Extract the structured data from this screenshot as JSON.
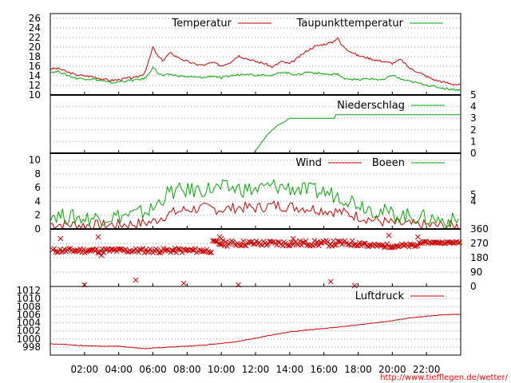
{
  "footer_url": "http://www.tiefflegen.de/wetter/",
  "colors": {
    "red": "#cc0000",
    "green": "#00aa00",
    "grid": "#999999"
  },
  "x_tick_labels": [
    "02:00",
    "04:00",
    "06:00",
    "08:00",
    "10:00",
    "12:00",
    "14:00",
    "16:00",
    "18:00",
    "20:00",
    "22:00"
  ],
  "chart_data": [
    {
      "type": "line",
      "x_unit": "hours",
      "xlim": [
        0,
        24
      ],
      "ylim": [
        10,
        27
      ],
      "y_ticks": [
        10,
        12,
        14,
        16,
        18,
        20,
        22,
        24,
        26
      ],
      "y_ticks_side": "left",
      "legend_placement": "top-right",
      "series": [
        {
          "name": "Temperatur",
          "color": "#cc0000",
          "x": [
            0,
            0.5,
            1,
            1.5,
            2,
            2.5,
            3,
            3.5,
            4,
            4.5,
            5,
            5.5,
            5.8,
            6.0,
            6.3,
            6.6,
            7,
            7.5,
            8,
            8.5,
            9,
            9.5,
            10,
            10.5,
            11,
            11.5,
            12,
            12.5,
            13,
            13.5,
            14,
            14.5,
            15,
            15.5,
            16,
            16.5,
            16.8,
            17,
            17.5,
            18,
            18.5,
            19,
            19.5,
            20,
            20.5,
            21,
            21.5,
            22,
            22.5,
            23,
            23.5,
            24
          ],
          "y": [
            15.5,
            15.5,
            14.8,
            14.2,
            14,
            13.8,
            13.4,
            13.0,
            13.2,
            13.5,
            13.6,
            14.5,
            17.5,
            20,
            18,
            17.2,
            18.8,
            17.8,
            17.0,
            16.4,
            16.2,
            16.8,
            16.1,
            16.8,
            18.2,
            17.6,
            17.0,
            16.6,
            15.8,
            17.0,
            16.5,
            17.8,
            19.2,
            20.2,
            20.6,
            21.0,
            22.0,
            20.5,
            19.2,
            18.2,
            17.8,
            17.3,
            17.0,
            16.6,
            17.4,
            15.6,
            14.8,
            13.9,
            13.1,
            12.7,
            12.3,
            12.1
          ]
        },
        {
          "name": "Taupunkttemperatur",
          "color": "#00aa00",
          "x": [
            0,
            0.5,
            1,
            1.5,
            2,
            2.5,
            3,
            3.5,
            4,
            4.5,
            5,
            5.5,
            5.8,
            6.0,
            6.3,
            6.6,
            7,
            7.5,
            8,
            8.5,
            9,
            9.5,
            10,
            10.5,
            11,
            11.5,
            12,
            12.5,
            13,
            13.5,
            14,
            14.5,
            15,
            15.5,
            16,
            16.5,
            16.8,
            17,
            17.5,
            18,
            18.5,
            19,
            19.5,
            20,
            20.5,
            21,
            21.5,
            22,
            22.5,
            23,
            23.5,
            24
          ],
          "y": [
            14.8,
            14.9,
            14.1,
            13.5,
            13.4,
            13.3,
            13.0,
            12.5,
            12.7,
            13.0,
            13.1,
            13.4,
            14.5,
            16.0,
            14.5,
            14.0,
            14.3,
            14.0,
            13.8,
            13.7,
            13.6,
            14.0,
            13.5,
            14.0,
            14.2,
            14.5,
            14.1,
            14.3,
            14.0,
            14.8,
            14.5,
            14.2,
            14.8,
            14.6,
            14.4,
            14.2,
            14.5,
            13.6,
            13.4,
            13.1,
            13.4,
            13.3,
            13.1,
            14.2,
            13.3,
            12.8,
            12.5,
            12.1,
            11.7,
            11.4,
            11.2,
            11.0
          ]
        }
      ]
    },
    {
      "type": "line",
      "x_unit": "hours",
      "xlim": [
        0,
        24
      ],
      "ylim": [
        0,
        5
      ],
      "y_ticks": [
        0,
        1,
        2,
        3,
        4,
        5
      ],
      "y_ticks_side": "right",
      "legend_placement": "top-right",
      "series": [
        {
          "name": "Niederschlag",
          "color": "#00aa00",
          "x": [
            0,
            11.9,
            12.1,
            12.4,
            12.7,
            13.0,
            13.3,
            13.6,
            14.0,
            16.6,
            16.7,
            24
          ],
          "y": [
            0,
            0,
            0.4,
            1.0,
            1.6,
            2.0,
            2.4,
            2.6,
            3.0,
            3.0,
            3.3,
            3.3
          ]
        }
      ]
    },
    {
      "type": "line",
      "x_unit": "hours",
      "xlim": [
        0,
        24
      ],
      "ylim": [
        0,
        11
      ],
      "y_ticks": [
        0,
        2,
        4,
        6,
        8,
        10
      ],
      "y_ticks_side": "left",
      "y_ticks_right": [
        4,
        5
      ],
      "legend_placement": "top-right",
      "series": [
        {
          "name": "Wind",
          "color": "#cc0000",
          "x": [
            0,
            1,
            2,
            3,
            4,
            5,
            6,
            6.5,
            7,
            8,
            9,
            10,
            11,
            12,
            13,
            14,
            15,
            16,
            17,
            18,
            19,
            20,
            21,
            22,
            23,
            24
          ],
          "y": [
            0.5,
            0.4,
            0.3,
            0.3,
            0.4,
            0.5,
            0.8,
            1.5,
            2.0,
            2.6,
            2.8,
            2.6,
            2.9,
            2.8,
            3.2,
            3.0,
            2.8,
            2.5,
            2.2,
            1.6,
            1.0,
            0.6,
            0.4,
            0.3,
            0.2,
            0.2
          ],
          "jitter": 1.6
        },
        {
          "name": "Boeen",
          "color": "#00aa00",
          "x": [
            0,
            1,
            2,
            3,
            4,
            5,
            6,
            6.5,
            7,
            8,
            9,
            10,
            11,
            12,
            13,
            14,
            15,
            16,
            17,
            18,
            19,
            20,
            21,
            22,
            23,
            24
          ],
          "y": [
            1.8,
            1.4,
            1.2,
            1.3,
            1.5,
            1.8,
            2.5,
            4.0,
            5.0,
            5.2,
            5.4,
            5.6,
            5.5,
            5.3,
            5.9,
            5.6,
            5.2,
            5.0,
            4.4,
            3.4,
            2.4,
            1.8,
            1.5,
            1.2,
            0.9,
            0.8
          ],
          "jitter": 2.4
        }
      ]
    },
    {
      "type": "scatter",
      "x_unit": "hours",
      "xlim": [
        0,
        24
      ],
      "ylim": [
        0,
        360
      ],
      "y_ticks": [
        0,
        90,
        180,
        270,
        360
      ],
      "y_ticks_side": "right",
      "series": [
        {
          "name": "",
          "color": "#cc0000",
          "marker": "x",
          "segments": [
            {
              "from": 0,
              "to": 9.5,
              "center": 225,
              "spread": 15
            },
            {
              "from": 9.5,
              "to": 18.5,
              "center": 270,
              "spread": 18
            },
            {
              "from": 18.5,
              "to": 21.5,
              "center": 255,
              "spread": 12
            },
            {
              "from": 21.5,
              "to": 24,
              "center": 275,
              "spread": 6
            }
          ],
          "outliers_x": [
            0.6,
            2.0,
            2.8,
            5.0,
            7.8,
            9.9,
            11.0,
            14.2,
            16.4,
            17.8,
            19.8,
            21.5,
            3.0,
            10.0
          ],
          "outliers_y": [
            300,
            10,
            310,
            40,
            20,
            310,
            10,
            300,
            30,
            5,
            320,
            310,
            195,
            300
          ]
        }
      ]
    },
    {
      "type": "line",
      "x_unit": "hours",
      "xlim": [
        0,
        24
      ],
      "ylim": [
        996,
        1013
      ],
      "y_ticks": [
        998,
        1000,
        1002,
        1004,
        1006,
        1008,
        1010,
        1012
      ],
      "y_ticks_side": "left",
      "legend_placement": "top-right",
      "series": [
        {
          "name": "Luftdruck",
          "color": "#cc0000",
          "x": [
            0,
            1,
            2,
            3,
            4,
            5,
            5.5,
            6,
            7,
            8,
            9,
            10,
            11,
            12,
            13,
            14,
            15,
            16,
            17,
            18,
            19,
            20,
            21,
            22,
            23,
            24
          ],
          "y": [
            998.8,
            998.6,
            998.3,
            998.2,
            998.2,
            997.8,
            997.6,
            997.7,
            998.0,
            998.2,
            998.5,
            998.9,
            999.4,
            1000.2,
            1001.0,
            1001.7,
            1002.2,
            1002.6,
            1003.0,
            1003.5,
            1004.0,
            1004.5,
            1005.2,
            1005.6,
            1006.0,
            1006.1
          ]
        }
      ]
    }
  ]
}
